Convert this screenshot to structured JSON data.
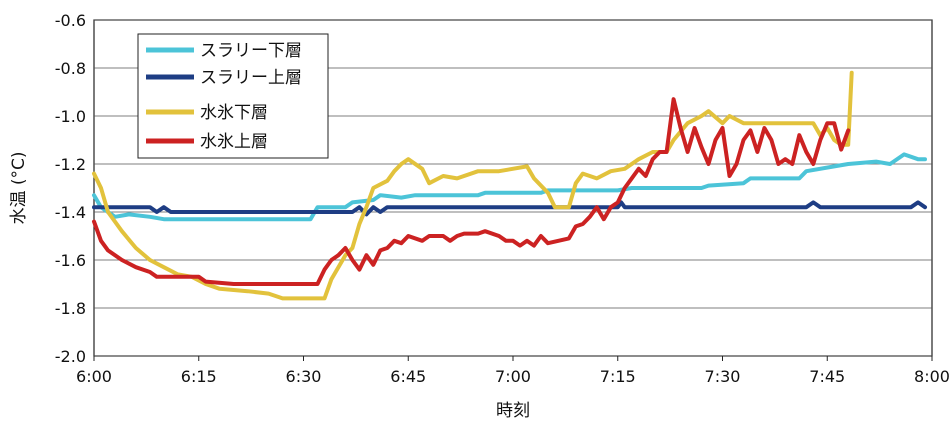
{
  "chart_data": {
    "type": "line",
    "title": "",
    "xlabel": "時刻",
    "ylabel": "水温 (°C)",
    "xlim": [
      "6:00",
      "8:00"
    ],
    "ylim": [
      -2.0,
      -0.6
    ],
    "x_ticks": [
      "6:00",
      "6:15",
      "6:30",
      "6:45",
      "7:00",
      "7:15",
      "7:30",
      "7:45",
      "8:00"
    ],
    "y_ticks": [
      "-0.6",
      "-0.8",
      "-1.0",
      "-1.2",
      "-1.4",
      "-1.6",
      "-1.8",
      "-2.0"
    ],
    "grid": "horizontal",
    "legend_position": "top-left",
    "series": [
      {
        "name": "スラリー下層",
        "color": "#4cc4d8",
        "points": [
          [
            "6:00",
            -1.33
          ],
          [
            "6:01",
            -1.38
          ],
          [
            "6:03",
            -1.42
          ],
          [
            "6:05",
            -1.41
          ],
          [
            "6:08",
            -1.42
          ],
          [
            "6:10",
            -1.43
          ],
          [
            "6:14",
            -1.43
          ],
          [
            "6:20",
            -1.43
          ],
          [
            "6:25",
            -1.43
          ],
          [
            "6:31",
            -1.43
          ],
          [
            "6:32",
            -1.38
          ],
          [
            "6:36",
            -1.38
          ],
          [
            "6:37",
            -1.36
          ],
          [
            "6:40",
            -1.35
          ],
          [
            "6:41",
            -1.33
          ],
          [
            "6:44",
            -1.34
          ],
          [
            "6:46",
            -1.33
          ],
          [
            "6:55",
            -1.33
          ],
          [
            "6:56",
            -1.32
          ],
          [
            "7:04",
            -1.32
          ],
          [
            "7:05",
            -1.31
          ],
          [
            "7:15",
            -1.31
          ],
          [
            "7:17",
            -1.3
          ],
          [
            "7:27",
            -1.3
          ],
          [
            "7:28",
            -1.29
          ],
          [
            "7:33",
            -1.28
          ],
          [
            "7:34",
            -1.26
          ],
          [
            "7:41",
            -1.26
          ],
          [
            "7:42",
            -1.23
          ],
          [
            "7:46",
            -1.21
          ],
          [
            "7:48",
            -1.2
          ],
          [
            "7:52",
            -1.19
          ],
          [
            "7:54",
            -1.2
          ],
          [
            "7:56",
            -1.16
          ],
          [
            "7:58",
            -1.18
          ],
          [
            "7:59",
            -1.18
          ]
        ]
      },
      {
        "name": "スラリー上層",
        "color": "#1e3d84",
        "points": [
          [
            "6:00",
            -1.38
          ],
          [
            "6:08",
            -1.38
          ],
          [
            "6:09",
            -1.4
          ],
          [
            "6:10",
            -1.38
          ],
          [
            "6:11",
            -1.4
          ],
          [
            "6:20",
            -1.4
          ],
          [
            "6:30",
            -1.4
          ],
          [
            "6:37",
            -1.4
          ],
          [
            "6:38",
            -1.38
          ],
          [
            "6:39",
            -1.41
          ],
          [
            "6:40",
            -1.38
          ],
          [
            "6:41",
            -1.4
          ],
          [
            "6:42",
            -1.38
          ],
          [
            "6:50",
            -1.38
          ],
          [
            "7:00",
            -1.38
          ],
          [
            "7:10",
            -1.38
          ],
          [
            "7:15",
            -1.38
          ],
          [
            "7:15.5",
            -1.36
          ],
          [
            "7:16",
            -1.38
          ],
          [
            "7:30",
            -1.38
          ],
          [
            "7:42",
            -1.38
          ],
          [
            "7:43",
            -1.36
          ],
          [
            "7:44",
            -1.38
          ],
          [
            "7:57",
            -1.38
          ],
          [
            "7:58",
            -1.36
          ],
          [
            "7:59",
            -1.38
          ]
        ]
      },
      {
        "name": "水氷下層",
        "color": "#e2c23c",
        "points": [
          [
            "6:00",
            -1.24
          ],
          [
            "6:01",
            -1.3
          ],
          [
            "6:02",
            -1.4
          ],
          [
            "6:04",
            -1.48
          ],
          [
            "6:06",
            -1.55
          ],
          [
            "6:08",
            -1.6
          ],
          [
            "6:10",
            -1.63
          ],
          [
            "6:12",
            -1.66
          ],
          [
            "6:14",
            -1.67
          ],
          [
            "6:16",
            -1.7
          ],
          [
            "6:18",
            -1.72
          ],
          [
            "6:22",
            -1.73
          ],
          [
            "6:25",
            -1.74
          ],
          [
            "6:27",
            -1.76
          ],
          [
            "6:33",
            -1.76
          ],
          [
            "6:34",
            -1.68
          ],
          [
            "6:36",
            -1.58
          ],
          [
            "6:37",
            -1.55
          ],
          [
            "6:38",
            -1.45
          ],
          [
            "6:39",
            -1.38
          ],
          [
            "6:40",
            -1.3
          ],
          [
            "6:42",
            -1.27
          ],
          [
            "6:43",
            -1.23
          ],
          [
            "6:44",
            -1.2
          ],
          [
            "6:45",
            -1.18
          ],
          [
            "6:47",
            -1.22
          ],
          [
            "6:48",
            -1.28
          ],
          [
            "6:50",
            -1.25
          ],
          [
            "6:52",
            -1.26
          ],
          [
            "6:55",
            -1.23
          ],
          [
            "6:58",
            -1.23
          ],
          [
            "7:02",
            -1.21
          ],
          [
            "7:03",
            -1.26
          ],
          [
            "7:05",
            -1.32
          ],
          [
            "7:06",
            -1.38
          ],
          [
            "7:08",
            -1.38
          ],
          [
            "7:09",
            -1.28
          ],
          [
            "7:10",
            -1.24
          ],
          [
            "7:12",
            -1.26
          ],
          [
            "7:14",
            -1.23
          ],
          [
            "7:16",
            -1.22
          ],
          [
            "7:18",
            -1.18
          ],
          [
            "7:20",
            -1.15
          ],
          [
            "7:22",
            -1.15
          ],
          [
            "7:23",
            -1.1
          ],
          [
            "7:25",
            -1.03
          ],
          [
            "7:27",
            -1.0
          ],
          [
            "7:28",
            -0.98
          ],
          [
            "7:30",
            -1.03
          ],
          [
            "7:31",
            -1.0
          ],
          [
            "7:33",
            -1.03
          ],
          [
            "7:40",
            -1.03
          ],
          [
            "7:43",
            -1.03
          ],
          [
            "7:44",
            -1.08
          ],
          [
            "7:45",
            -1.05
          ],
          [
            "7:46",
            -1.1
          ],
          [
            "7:47",
            -1.12
          ],
          [
            "7:48",
            -1.12
          ],
          [
            "7:48.5",
            -0.82
          ]
        ]
      },
      {
        "name": "水氷上層",
        "color": "#cc2222",
        "points": [
          [
            "6:00",
            -1.44
          ],
          [
            "6:01",
            -1.52
          ],
          [
            "6:02",
            -1.56
          ],
          [
            "6:04",
            -1.6
          ],
          [
            "6:06",
            -1.63
          ],
          [
            "6:08",
            -1.65
          ],
          [
            "6:09",
            -1.67
          ],
          [
            "6:15",
            -1.67
          ],
          [
            "6:16",
            -1.69
          ],
          [
            "6:20",
            -1.7
          ],
          [
            "6:25",
            -1.7
          ],
          [
            "6:32",
            -1.7
          ],
          [
            "6:33",
            -1.64
          ],
          [
            "6:34",
            -1.6
          ],
          [
            "6:35",
            -1.58
          ],
          [
            "6:36",
            -1.55
          ],
          [
            "6:37",
            -1.6
          ],
          [
            "6:38",
            -1.64
          ],
          [
            "6:39",
            -1.58
          ],
          [
            "6:40",
            -1.62
          ],
          [
            "6:41",
            -1.56
          ],
          [
            "6:42",
            -1.55
          ],
          [
            "6:43",
            -1.52
          ],
          [
            "6:44",
            -1.53
          ],
          [
            "6:45",
            -1.5
          ],
          [
            "6:47",
            -1.52
          ],
          [
            "6:48",
            -1.5
          ],
          [
            "6:50",
            -1.5
          ],
          [
            "6:51",
            -1.52
          ],
          [
            "6:52",
            -1.5
          ],
          [
            "6:53",
            -1.49
          ],
          [
            "6:55",
            -1.49
          ],
          [
            "6:56",
            -1.48
          ],
          [
            "6:58",
            -1.5
          ],
          [
            "6:59",
            -1.52
          ],
          [
            "7:00",
            -1.52
          ],
          [
            "7:01",
            -1.54
          ],
          [
            "7:02",
            -1.52
          ],
          [
            "7:03",
            -1.54
          ],
          [
            "7:04",
            -1.5
          ],
          [
            "7:05",
            -1.53
          ],
          [
            "7:08",
            -1.51
          ],
          [
            "7:09",
            -1.46
          ],
          [
            "7:10",
            -1.45
          ],
          [
            "7:11",
            -1.42
          ],
          [
            "7:12",
            -1.38
          ],
          [
            "7:13",
            -1.43
          ],
          [
            "7:14",
            -1.38
          ],
          [
            "7:15",
            -1.36
          ],
          [
            "7:16",
            -1.3
          ],
          [
            "7:17",
            -1.26
          ],
          [
            "7:18",
            -1.22
          ],
          [
            "7:19",
            -1.25
          ],
          [
            "7:20",
            -1.18
          ],
          [
            "7:21",
            -1.15
          ],
          [
            "7:22",
            -1.15
          ],
          [
            "7:23",
            -0.93
          ],
          [
            "7:24",
            -1.05
          ],
          [
            "7:25",
            -1.15
          ],
          [
            "7:26",
            -1.05
          ],
          [
            "7:27",
            -1.13
          ],
          [
            "7:28",
            -1.2
          ],
          [
            "7:29",
            -1.1
          ],
          [
            "7:30",
            -1.05
          ],
          [
            "7:31",
            -1.25
          ],
          [
            "7:32",
            -1.2
          ],
          [
            "7:33",
            -1.1
          ],
          [
            "7:34",
            -1.06
          ],
          [
            "7:35",
            -1.15
          ],
          [
            "7:36",
            -1.05
          ],
          [
            "7:37",
            -1.1
          ],
          [
            "7:38",
            -1.2
          ],
          [
            "7:39",
            -1.18
          ],
          [
            "7:40",
            -1.2
          ],
          [
            "7:41",
            -1.08
          ],
          [
            "7:42",
            -1.15
          ],
          [
            "7:43",
            -1.2
          ],
          [
            "7:44",
            -1.1
          ],
          [
            "7:45",
            -1.03
          ],
          [
            "7:46",
            -1.03
          ],
          [
            "7:47",
            -1.14
          ],
          [
            "7:48",
            -1.06
          ]
        ]
      }
    ]
  }
}
